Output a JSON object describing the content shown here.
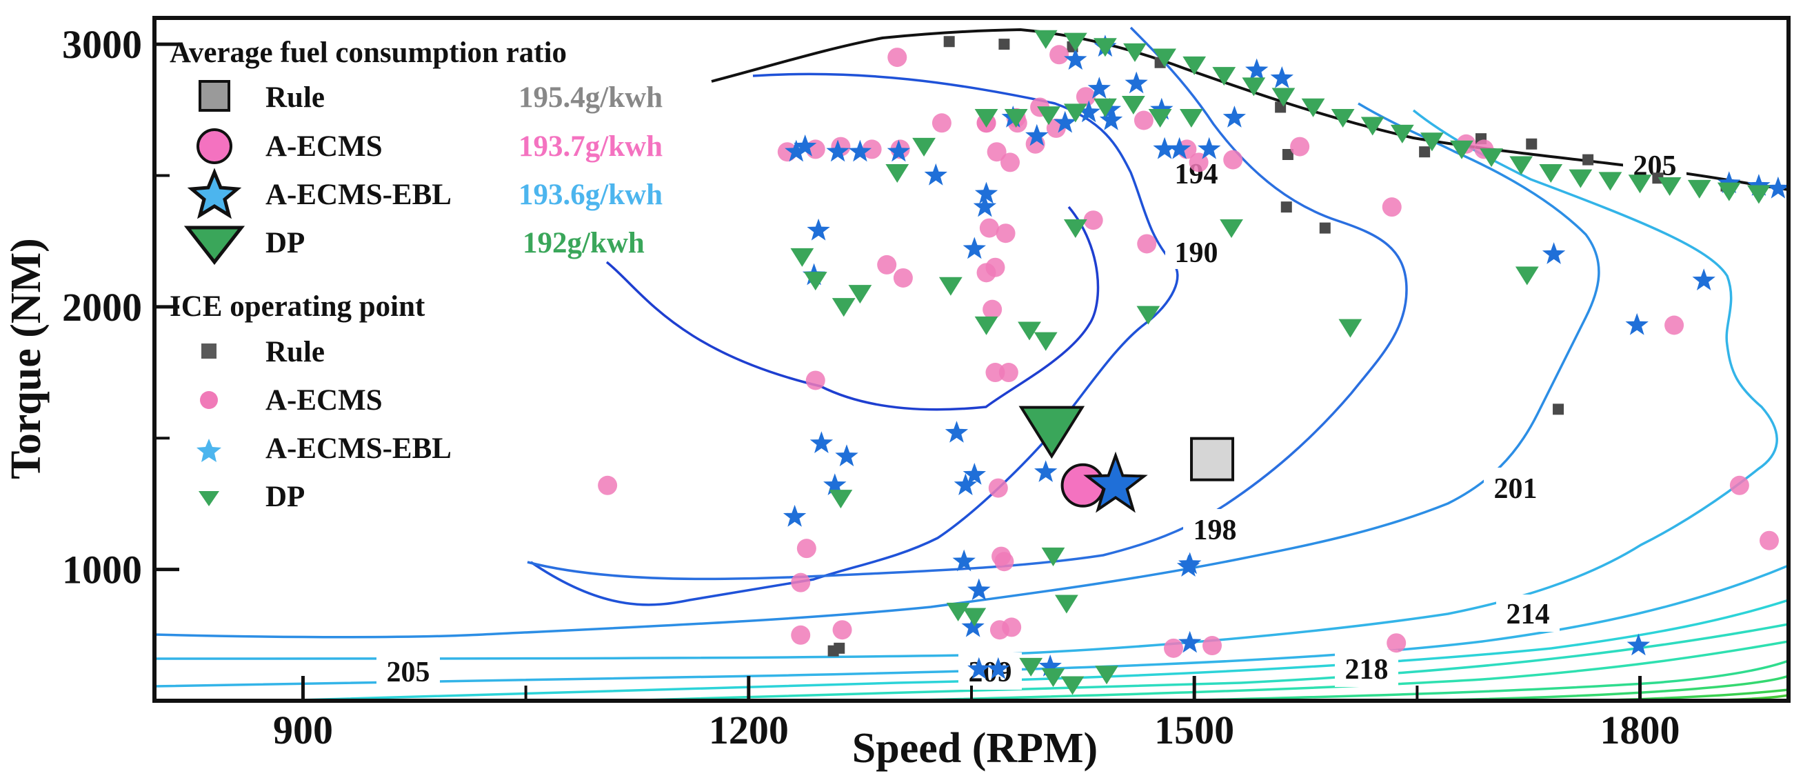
{
  "chart_data": {
    "type": "scatter",
    "title": "",
    "xlabel": "Speed (RPM)",
    "ylabel": "Torque (NM)",
    "xlim": [
      800,
      1900
    ],
    "ylim": [
      500,
      3100
    ],
    "xticks": [
      900,
      1200,
      1500,
      1800
    ],
    "yticks": [
      1000,
      2000,
      3000
    ],
    "legend_average_title": "Average fuel consumption ratio",
    "legend_points_title": "ICE operating point",
    "averages": [
      {
        "name": "Rule",
        "value_label": "195.4g/kwh",
        "color": "#808080",
        "marker": "square",
        "x": 1512,
        "y": 1420
      },
      {
        "name": "A-ECMS",
        "value_label": "193.7g/kwh",
        "color": "#f472c0",
        "marker": "circle",
        "x": 1425,
        "y": 1320
      },
      {
        "name": "A-ECMS-EBL",
        "value_label": "193.6g/kwh",
        "color": "#4cb5ee",
        "marker": "star",
        "x": 1447,
        "y": 1320
      },
      {
        "name": "DP",
        "value_label": "192g/kwh",
        "color": "#3aa65a",
        "marker": "triangle",
        "x": 1404,
        "y": 1530
      }
    ],
    "series": [
      {
        "name": "Rule",
        "marker": "square",
        "color": "#4a4a4a",
        "points": [
          [
            1335,
            3010
          ],
          [
            1372,
            3000
          ],
          [
            1418,
            2990
          ],
          [
            1477,
            2930
          ],
          [
            1558,
            2760
          ],
          [
            1563,
            2580
          ],
          [
            1588,
            2300
          ],
          [
            1562,
            2380
          ],
          [
            1620,
            2700
          ],
          [
            1655,
            2590
          ],
          [
            1693,
            2640
          ],
          [
            1727,
            2620
          ],
          [
            1765,
            2560
          ],
          [
            1812,
            2490
          ],
          [
            1858,
            2460
          ],
          [
            1745,
            1610
          ],
          [
            1261,
            700
          ],
          [
            1257,
            690
          ]
        ]
      },
      {
        "name": "A-ECMS",
        "marker": "circle",
        "color": "#f07ab8",
        "points": [
          [
            1300,
            2950
          ],
          [
            1330,
            2700
          ],
          [
            1360,
            2700
          ],
          [
            1381,
            2700
          ],
          [
            1367,
            2590
          ],
          [
            1376,
            2550
          ],
          [
            1393,
            2620
          ],
          [
            1407,
            2680
          ],
          [
            1427,
            2800
          ],
          [
            1466,
            2710
          ],
          [
            1495,
            2600
          ],
          [
            1503,
            2550
          ],
          [
            1526,
            2560
          ],
          [
            1571,
            2610
          ],
          [
            1633,
            2380
          ],
          [
            1683,
            2620
          ],
          [
            1695,
            2600
          ],
          [
            1823,
            1930
          ],
          [
            1867,
            1320
          ],
          [
            1887,
            1110
          ],
          [
            1468,
            2240
          ],
          [
            1432,
            2330
          ],
          [
            1373,
            2280
          ],
          [
            1362,
            2300
          ],
          [
            1360,
            2130
          ],
          [
            1366,
            2150
          ],
          [
            1293,
            2160
          ],
          [
            1304,
            2110
          ],
          [
            1364,
            1990
          ],
          [
            1366,
            1750
          ],
          [
            1375,
            1750
          ],
          [
            1245,
            1720
          ],
          [
            1105,
            1320
          ],
          [
            1239,
            1080
          ],
          [
            1235,
            950
          ],
          [
            1263,
            770
          ],
          [
            1235,
            750
          ],
          [
            1370,
            1050
          ],
          [
            1372,
            1030
          ],
          [
            1368,
            1310
          ],
          [
            1369,
            770
          ],
          [
            1377,
            780
          ],
          [
            1486,
            700
          ],
          [
            1512,
            710
          ],
          [
            1636,
            720
          ],
          [
            1226,
            2590
          ],
          [
            1245,
            2600
          ],
          [
            1262,
            2610
          ],
          [
            1283,
            2600
          ],
          [
            1302,
            2600
          ],
          [
            1360,
            2700
          ],
          [
            1380,
            2720
          ],
          [
            1396,
            2760
          ],
          [
            1409,
            2960
          ]
        ]
      },
      {
        "name": "A-ECMS-EBL",
        "marker": "star",
        "color": "#1f6fd8",
        "points": [
          [
            1232,
            2590
          ],
          [
            1238,
            2610
          ],
          [
            1260,
            2590
          ],
          [
            1275,
            2590
          ],
          [
            1301,
            2590
          ],
          [
            1326,
            2500
          ],
          [
            1352,
            2220
          ],
          [
            1360,
            2430
          ],
          [
            1359,
            2380
          ],
          [
            1378,
            2720
          ],
          [
            1394,
            2650
          ],
          [
            1413,
            2700
          ],
          [
            1429,
            2740
          ],
          [
            1436,
            2830
          ],
          [
            1443,
            2750
          ],
          [
            1444,
            2710
          ],
          [
            1461,
            2850
          ],
          [
            1478,
            2750
          ],
          [
            1480,
            2600
          ],
          [
            1490,
            2600
          ],
          [
            1510,
            2600
          ],
          [
            1527,
            2720
          ],
          [
            1542,
            2900
          ],
          [
            1559,
            2870
          ],
          [
            1742,
            2200
          ],
          [
            1843,
            2100
          ],
          [
            1798,
            1930
          ],
          [
            1247,
            2290
          ],
          [
            1244,
            2120
          ],
          [
            1249,
            1480
          ],
          [
            1258,
            1320
          ],
          [
            1266,
            1430
          ],
          [
            1231,
            1200
          ],
          [
            1340,
            1520
          ],
          [
            1352,
            1360
          ],
          [
            1346,
            1320
          ],
          [
            1345,
            1030
          ],
          [
            1355,
            920
          ],
          [
            1351,
            780
          ],
          [
            1355,
            620
          ],
          [
            1368,
            620
          ],
          [
            1403,
            630
          ],
          [
            1400,
            1370
          ],
          [
            1497,
            1020
          ],
          [
            1496,
            1010
          ],
          [
            1497,
            720
          ],
          [
            1799,
            710
          ],
          [
            1860,
            2470
          ],
          [
            1880,
            2460
          ],
          [
            1893,
            2450
          ],
          [
            1420,
            2940
          ],
          [
            1440,
            2990
          ]
        ]
      },
      {
        "name": "DP",
        "marker": "triangle",
        "color": "#3aa65a",
        "points": [
          [
            1400,
            3020
          ],
          [
            1420,
            3010
          ],
          [
            1440,
            2990
          ],
          [
            1460,
            2970
          ],
          [
            1480,
            2950
          ],
          [
            1500,
            2920
          ],
          [
            1520,
            2880
          ],
          [
            1540,
            2840
          ],
          [
            1560,
            2800
          ],
          [
            1580,
            2760
          ],
          [
            1600,
            2720
          ],
          [
            1620,
            2690
          ],
          [
            1640,
            2660
          ],
          [
            1660,
            2630
          ],
          [
            1680,
            2600
          ],
          [
            1700,
            2570
          ],
          [
            1720,
            2540
          ],
          [
            1740,
            2510
          ],
          [
            1760,
            2490
          ],
          [
            1780,
            2480
          ],
          [
            1800,
            2470
          ],
          [
            1820,
            2460
          ],
          [
            1840,
            2450
          ],
          [
            1860,
            2440
          ],
          [
            1880,
            2430
          ],
          [
            1300,
            2510
          ],
          [
            1318,
            2610
          ],
          [
            1360,
            2720
          ],
          [
            1380,
            2720
          ],
          [
            1402,
            2730
          ],
          [
            1420,
            2740
          ],
          [
            1440,
            2760
          ],
          [
            1459,
            2770
          ],
          [
            1477,
            2720
          ],
          [
            1498,
            2720
          ],
          [
            1236,
            2190
          ],
          [
            1245,
            2100
          ],
          [
            1264,
            2000
          ],
          [
            1275,
            2050
          ],
          [
            1336,
            2080
          ],
          [
            1360,
            1930
          ],
          [
            1389,
            1910
          ],
          [
            1400,
            1870
          ],
          [
            1420,
            2300
          ],
          [
            1469,
            1970
          ],
          [
            1525,
            2300
          ],
          [
            1605,
            1920
          ],
          [
            1724,
            2120
          ],
          [
            1262,
            1270
          ],
          [
            1341,
            840
          ],
          [
            1352,
            820
          ],
          [
            1405,
            1050
          ],
          [
            1414,
            870
          ],
          [
            1390,
            630
          ],
          [
            1405,
            590
          ],
          [
            1418,
            560
          ],
          [
            1441,
            600
          ]
        ]
      }
    ],
    "contours": [
      {
        "label": "190",
        "color": "#1e3fd0"
      },
      {
        "label": "194",
        "color": "#1f52d8"
      },
      {
        "label": "198",
        "color": "#2a6fe0"
      },
      {
        "label": "201",
        "color": "#2c8ee5"
      },
      {
        "label": "205",
        "color": "#33b4e8"
      },
      {
        "label": "209",
        "color": "#2cd3d8"
      },
      {
        "label": "214",
        "color": "#2ddcc0"
      },
      {
        "label": "218",
        "color": "#2fdc8e"
      }
    ],
    "contour_label_extra": "205",
    "contour_label_extra2": "209",
    "colors": {
      "boundary": "#111111",
      "axis": "#111111"
    }
  }
}
